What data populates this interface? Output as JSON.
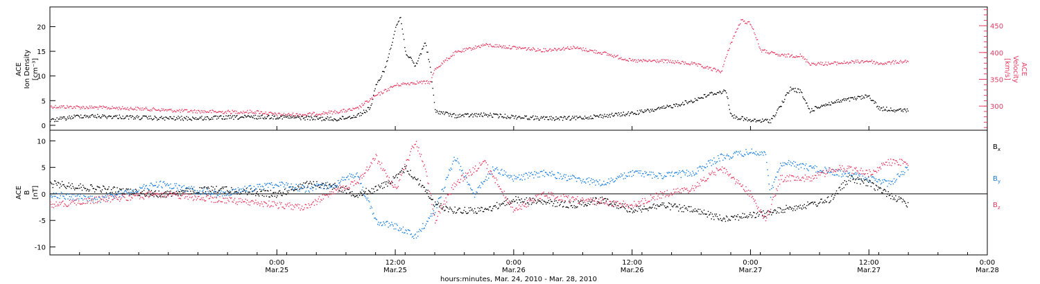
{
  "chart_data": [
    {
      "type": "scatter",
      "x_axis": {
        "xlim": [
          "2010-03-24T01:00",
          "2010-03-28T00:00"
        ],
        "tick_labels": [
          {
            "time": "2010-03-25T00:00",
            "line1": "0:00",
            "line2": "Mar.25"
          },
          {
            "time": "2010-03-25T12:00",
            "line1": "12:00",
            "line2": "Mar.25"
          },
          {
            "time": "2010-03-26T00:00",
            "line1": "0:00",
            "line2": "Mar.26"
          },
          {
            "time": "2010-03-26T12:00",
            "line1": "12:00",
            "line2": "Mar.26"
          },
          {
            "time": "2010-03-27T00:00",
            "line1": "0:00",
            "line2": "Mar.27"
          },
          {
            "time": "2010-03-27T12:00",
            "line1": "12:00",
            "line2": "Mar.27"
          },
          {
            "time": "2010-03-28T00:00",
            "line1": "0:00",
            "line2": "Mar.28"
          }
        ],
        "xlabel": "hours:minutes, Mar. 24, 2010 - Mar. 28, 2010"
      },
      "ylabel_left": [
        "ACE",
        "Ion Density",
        "[cm⁻³]"
      ],
      "ylim_left": [
        -1,
        24
      ],
      "yticks_left": [
        0,
        5,
        10,
        15,
        20
      ],
      "ylabel_right": [
        "ACE",
        "Velocity",
        "[km/s]"
      ],
      "ylim_right": [
        255,
        485
      ],
      "yticks_right": [
        300,
        350,
        400,
        450
      ],
      "series": [
        {
          "color": "#000000",
          "axis": "left",
          "points": [
            [
              "2010-03-24T01:00",
              1.0
            ],
            [
              "2010-03-24T04:00",
              2.0
            ],
            [
              "2010-03-24T08:00",
              1.8
            ],
            [
              "2010-03-24T12:00",
              1.5
            ],
            [
              "2010-03-24T16:00",
              1.5
            ],
            [
              "2010-03-24T20:00",
              1.7
            ],
            [
              "2010-03-25T00:00",
              1.8
            ],
            [
              "2010-03-25T04:00",
              1.5
            ],
            [
              "2010-03-25T06:00",
              1.3
            ],
            [
              "2010-03-25T08:00",
              2.0
            ],
            [
              "2010-03-25T09:00",
              3.0
            ],
            [
              "2010-03-25T09:30",
              4.0
            ],
            [
              "2010-03-25T10:00",
              8.0
            ],
            [
              "2010-03-25T11:00",
              12.0
            ],
            [
              "2010-03-25T12:00",
              20.0
            ],
            [
              "2010-03-25T12:30",
              22.0
            ],
            [
              "2010-03-25T13:00",
              15.0
            ],
            [
              "2010-03-25T14:00",
              12.0
            ],
            [
              "2010-03-25T15:00",
              17.0
            ],
            [
              "2010-03-25T15:30",
              12.0
            ],
            [
              "2010-03-25T16:00",
              3.0
            ],
            [
              "2010-03-25T18:00",
              2.0
            ],
            [
              "2010-03-25T21:00",
              2.2
            ],
            [
              "2010-03-26T00:00",
              1.8
            ],
            [
              "2010-03-26T03:00",
              1.5
            ],
            [
              "2010-03-26T06:00",
              1.5
            ],
            [
              "2010-03-26T09:00",
              2.0
            ],
            [
              "2010-03-26T12:00",
              2.5
            ],
            [
              "2010-03-26T15:00",
              3.5
            ],
            [
              "2010-03-26T18:00",
              5.0
            ],
            [
              "2010-03-26T20:00",
              6.5
            ],
            [
              "2010-03-26T21:30",
              7.0
            ],
            [
              "2010-03-26T22:00",
              2.0
            ],
            [
              "2010-03-27T00:00",
              1.0
            ],
            [
              "2010-03-27T02:00",
              1.0
            ],
            [
              "2010-03-27T03:00",
              4.0
            ],
            [
              "2010-03-27T04:00",
              7.5
            ],
            [
              "2010-03-27T05:00",
              7.0
            ],
            [
              "2010-03-27T06:00",
              3.0
            ],
            [
              "2010-03-27T07:00",
              4.0
            ],
            [
              "2010-03-27T09:00",
              5.0
            ],
            [
              "2010-03-27T12:00",
              6.0
            ],
            [
              "2010-03-27T13:00",
              3.5
            ],
            [
              "2010-03-27T16:00",
              3.0
            ]
          ]
        },
        {
          "color": "#e63a62",
          "axis": "right",
          "points": [
            [
              "2010-03-24T01:00",
              300
            ],
            [
              "2010-03-24T06:00",
              298
            ],
            [
              "2010-03-24T10:00",
              296
            ],
            [
              "2010-03-24T14:00",
              292
            ],
            [
              "2010-03-24T18:00",
              290
            ],
            [
              "2010-03-24T22:00",
              290
            ],
            [
              "2010-03-25T00:00",
              285
            ],
            [
              "2010-03-25T03:00",
              285
            ],
            [
              "2010-03-25T06:00",
              290
            ],
            [
              "2010-03-25T08:00",
              295
            ],
            [
              "2010-03-25T10:00",
              320
            ],
            [
              "2010-03-25T12:00",
              340
            ],
            [
              "2010-03-25T14:00",
              345
            ],
            [
              "2010-03-25T15:30",
              345
            ],
            [
              "2010-03-25T16:00",
              370
            ],
            [
              "2010-03-25T18:00",
              400
            ],
            [
              "2010-03-25T21:00",
              415
            ],
            [
              "2010-03-26T00:00",
              410
            ],
            [
              "2010-03-26T03:00",
              405
            ],
            [
              "2010-03-26T06:00",
              410
            ],
            [
              "2010-03-26T09:00",
              400
            ],
            [
              "2010-03-26T12:00",
              385
            ],
            [
              "2010-03-26T15:00",
              385
            ],
            [
              "2010-03-26T18:00",
              380
            ],
            [
              "2010-03-26T20:00",
              370
            ],
            [
              "2010-03-26T21:00",
              365
            ],
            [
              "2010-03-26T22:00",
              420
            ],
            [
              "2010-03-26T23:00",
              460
            ],
            [
              "2010-03-27T00:00",
              455
            ],
            [
              "2010-03-27T01:00",
              405
            ],
            [
              "2010-03-27T03:00",
              395
            ],
            [
              "2010-03-27T05:00",
              395
            ],
            [
              "2010-03-27T06:00",
              380
            ],
            [
              "2010-03-27T08:00",
              380
            ],
            [
              "2010-03-27T12:00",
              385
            ],
            [
              "2010-03-27T13:00",
              380
            ],
            [
              "2010-03-27T16:00",
              385
            ]
          ]
        }
      ]
    },
    {
      "type": "scatter",
      "ylabel": [
        "ACE",
        "B",
        "[nT]"
      ],
      "ylim": [
        -11.5,
        12
      ],
      "yticks": [
        -10,
        -5,
        0,
        5,
        10
      ],
      "zero_line": true,
      "legend": {
        "placement": "right",
        "entries": [
          "Bx",
          "By",
          "Bz"
        ]
      },
      "series": [
        {
          "name": "Bx",
          "color": "#000000",
          "points": [
            [
              "2010-03-24T01:00",
              2.0
            ],
            [
              "2010-03-24T06:00",
              1.0
            ],
            [
              "2010-03-24T12:00",
              0.0
            ],
            [
              "2010-03-24T18:00",
              1.0
            ],
            [
              "2010-03-25T00:00",
              0.0
            ],
            [
              "2010-03-25T03:00",
              2.0
            ],
            [
              "2010-03-25T06:00",
              1.5
            ],
            [
              "2010-03-25T08:00",
              0.0
            ],
            [
              "2010-03-25T10:00",
              1.0
            ],
            [
              "2010-03-25T12:00",
              3.0
            ],
            [
              "2010-03-25T13:00",
              5.0
            ],
            [
              "2010-03-25T15:00",
              1.0
            ],
            [
              "2010-03-25T16:00",
              -2.0
            ],
            [
              "2010-03-25T18:00",
              -3.0
            ],
            [
              "2010-03-25T21:00",
              -3.0
            ],
            [
              "2010-03-26T00:00",
              -1.0
            ],
            [
              "2010-03-26T03:00",
              -1.5
            ],
            [
              "2010-03-26T06:00",
              -2.0
            ],
            [
              "2010-03-26T09:00",
              -1.0
            ],
            [
              "2010-03-26T12:00",
              -3.0
            ],
            [
              "2010-03-26T15:00",
              -2.0
            ],
            [
              "2010-03-26T18:00",
              -3.0
            ],
            [
              "2010-03-26T21:00",
              -4.5
            ],
            [
              "2010-03-27T00:00",
              -4.0
            ],
            [
              "2010-03-27T02:00",
              -3.5
            ],
            [
              "2010-03-27T04:00",
              -2.5
            ],
            [
              "2010-03-27T06:00",
              -2.0
            ],
            [
              "2010-03-27T08:00",
              -1.0
            ],
            [
              "2010-03-27T10:00",
              3.0
            ],
            [
              "2010-03-27T12:00",
              2.0
            ],
            [
              "2010-03-27T14:00",
              0.0
            ],
            [
              "2010-03-27T16:00",
              -2.0
            ]
          ]
        },
        {
          "name": "By",
          "color": "#1a7fe0",
          "points": [
            [
              "2010-03-24T01:00",
              0.0
            ],
            [
              "2010-03-24T06:00",
              -1.0
            ],
            [
              "2010-03-24T12:00",
              2.0
            ],
            [
              "2010-03-24T18:00",
              0.0
            ],
            [
              "2010-03-25T00:00",
              2.0
            ],
            [
              "2010-03-25T03:00",
              1.0
            ],
            [
              "2010-03-25T06:00",
              2.0
            ],
            [
              "2010-03-25T08:00",
              4.0
            ],
            [
              "2010-03-25T10:00",
              -5.0
            ],
            [
              "2010-03-25T12:00",
              -6.0
            ],
            [
              "2010-03-25T13:00",
              -7.0
            ],
            [
              "2010-03-25T14:00",
              -8.0
            ],
            [
              "2010-03-25T16:00",
              -3.0
            ],
            [
              "2010-03-25T18:00",
              7.0
            ],
            [
              "2010-03-25T20:00",
              0.0
            ],
            [
              "2010-03-25T22:00",
              5.0
            ],
            [
              "2010-03-26T00:00",
              3.0
            ],
            [
              "2010-03-26T03:00",
              4.0
            ],
            [
              "2010-03-26T06:00",
              3.0
            ],
            [
              "2010-03-26T09:00",
              2.0
            ],
            [
              "2010-03-26T12:00",
              4.0
            ],
            [
              "2010-03-26T15:00",
              3.5
            ],
            [
              "2010-03-26T18:00",
              4.0
            ],
            [
              "2010-03-26T21:00",
              7.0
            ],
            [
              "2010-03-27T00:00",
              8.0
            ],
            [
              "2010-03-27T01:30",
              7.5
            ],
            [
              "2010-03-27T02:00",
              0.0
            ],
            [
              "2010-03-27T03:00",
              6.0
            ],
            [
              "2010-03-27T06:00",
              5.0
            ],
            [
              "2010-03-27T09:00",
              4.0
            ],
            [
              "2010-03-27T12:00",
              3.0
            ],
            [
              "2010-03-27T14:00",
              2.0
            ],
            [
              "2010-03-27T16:00",
              5.0
            ]
          ]
        },
        {
          "name": "Bz",
          "color": "#e63a62",
          "points": [
            [
              "2010-03-24T01:00",
              -2.0
            ],
            [
              "2010-03-24T06:00",
              -1.0
            ],
            [
              "2010-03-24T12:00",
              0.0
            ],
            [
              "2010-03-24T18:00",
              -1.0
            ],
            [
              "2010-03-25T00:00",
              -2.0
            ],
            [
              "2010-03-25T03:00",
              -2.5
            ],
            [
              "2010-03-25T06:00",
              1.0
            ],
            [
              "2010-03-25T08:00",
              2.0
            ],
            [
              "2010-03-25T10:00",
              7.0
            ],
            [
              "2010-03-25T12:00",
              1.0
            ],
            [
              "2010-03-25T14:00",
              10.0
            ],
            [
              "2010-03-25T15:00",
              5.0
            ],
            [
              "2010-03-25T16:00",
              -5.0
            ],
            [
              "2010-03-25T18:00",
              2.0
            ],
            [
              "2010-03-25T21:00",
              6.0
            ],
            [
              "2010-03-26T00:00",
              -3.0
            ],
            [
              "2010-03-26T03:00",
              0.0
            ],
            [
              "2010-03-26T06:00",
              -1.0
            ],
            [
              "2010-03-26T09:00",
              -1.5
            ],
            [
              "2010-03-26T12:00",
              -2.0
            ],
            [
              "2010-03-26T15:00",
              0.0
            ],
            [
              "2010-03-26T18:00",
              1.0
            ],
            [
              "2010-03-26T21:00",
              5.0
            ],
            [
              "2010-03-27T00:00",
              0.0
            ],
            [
              "2010-03-27T01:30",
              -5.0
            ],
            [
              "2010-03-27T03:00",
              3.0
            ],
            [
              "2010-03-27T06:00",
              3.0
            ],
            [
              "2010-03-27T09:00",
              5.0
            ],
            [
              "2010-03-27T12:00",
              4.0
            ],
            [
              "2010-03-27T14:00",
              6.0
            ],
            [
              "2010-03-27T16:00",
              6.0
            ]
          ]
        }
      ]
    }
  ],
  "legend_labels": {
    "bx": {
      "main": "B",
      "sub": "x"
    },
    "by": {
      "main": "B",
      "sub": "y"
    },
    "bz": {
      "main": "B",
      "sub": "z"
    }
  }
}
